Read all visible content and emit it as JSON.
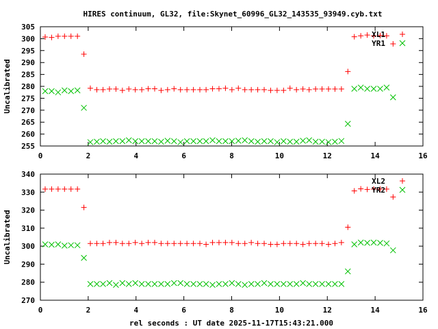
{
  "chart_data": [
    {
      "type": "scatter",
      "title": "HIRES continuum, GL32, file:Skynet_60996_GL32_143535_93949.cyb.txt",
      "xlabel": "",
      "ylabel": "Uncalibrated",
      "xlim": [
        0,
        16
      ],
      "ylim": [
        255,
        305
      ],
      "xticks": [
        0,
        2,
        4,
        6,
        8,
        10,
        12,
        14,
        16
      ],
      "yticks": [
        255,
        260,
        265,
        270,
        275,
        280,
        285,
        290,
        295,
        300,
        305
      ],
      "grid": false,
      "legend_position": "top-right",
      "x": [
        0.2,
        0.47,
        0.74,
        1.01,
        1.28,
        1.55,
        1.82,
        2.09,
        2.36,
        2.62,
        2.89,
        3.16,
        3.43,
        3.7,
        3.97,
        4.24,
        4.51,
        4.78,
        5.05,
        5.32,
        5.59,
        5.86,
        6.13,
        6.4,
        6.67,
        6.93,
        7.2,
        7.47,
        7.74,
        8.01,
        8.28,
        8.55,
        8.82,
        9.09,
        9.36,
        9.63,
        9.9,
        10.17,
        10.44,
        10.71,
        10.98,
        11.24,
        11.51,
        11.78,
        12.05,
        12.32,
        12.59,
        12.86,
        13.13,
        13.4,
        13.67,
        13.94,
        14.21,
        14.48,
        14.75
      ],
      "series": [
        {
          "name": "XL1",
          "marker": "plus",
          "color": "#ff0000",
          "values": [
            300.7,
            300.5,
            301,
            301,
            301,
            301,
            293.5,
            279.2,
            278.6,
            278.6,
            278.9,
            278.9,
            278.3,
            278.9,
            278.6,
            278.6,
            279,
            279,
            278.3,
            278.6,
            279,
            278.6,
            278.6,
            278.6,
            278.6,
            278.6,
            279,
            279,
            279.2,
            278.6,
            279.2,
            278.6,
            278.6,
            278.6,
            278.6,
            278.3,
            278.3,
            278.3,
            279.2,
            278.6,
            278.9,
            278.6,
            278.9,
            278.9,
            278.9,
            278.9,
            278.9,
            286.2,
            300.8,
            301.2,
            301.5,
            301.2,
            301.3,
            301.2,
            297.8
          ]
        },
        {
          "name": "YR1",
          "marker": "cross",
          "color": "#00c000",
          "values": [
            278,
            278,
            277.5,
            278.3,
            278,
            278.3,
            271,
            256.6,
            256.8,
            257,
            256.8,
            257,
            257,
            257.4,
            257,
            257,
            257,
            257,
            256.8,
            257.2,
            257,
            256.6,
            257,
            257,
            257,
            257,
            257.4,
            257,
            257,
            257,
            257.2,
            257.4,
            257,
            256.8,
            257,
            257,
            256.6,
            257,
            256.8,
            256.8,
            257.2,
            257.4,
            256.8,
            256.8,
            256.6,
            256.8,
            257.1,
            264.3,
            279,
            279.5,
            279,
            279,
            279,
            279.5,
            275.4
          ]
        }
      ]
    },
    {
      "type": "scatter",
      "title": "",
      "xlabel": "rel seconds : UT date 2025-11-17T15:43:21.000",
      "ylabel": "Uncalibrated",
      "xlim": [
        0,
        16
      ],
      "ylim": [
        270,
        340
      ],
      "xticks": [
        0,
        2,
        4,
        6,
        8,
        10,
        12,
        14,
        16
      ],
      "yticks": [
        270,
        280,
        290,
        300,
        310,
        320,
        330,
        340
      ],
      "grid": false,
      "legend_position": "top-right",
      "x": [
        0.2,
        0.47,
        0.74,
        1.01,
        1.28,
        1.55,
        1.82,
        2.09,
        2.36,
        2.62,
        2.89,
        3.16,
        3.43,
        3.7,
        3.97,
        4.24,
        4.51,
        4.78,
        5.05,
        5.32,
        5.59,
        5.86,
        6.13,
        6.4,
        6.67,
        6.93,
        7.2,
        7.47,
        7.74,
        8.01,
        8.28,
        8.55,
        8.82,
        9.09,
        9.36,
        9.63,
        9.9,
        10.17,
        10.44,
        10.71,
        10.98,
        11.24,
        11.51,
        11.78,
        12.05,
        12.32,
        12.59,
        12.86,
        13.13,
        13.4,
        13.67,
        13.94,
        14.21,
        14.48,
        14.75
      ],
      "series": [
        {
          "name": "XL2",
          "marker": "plus",
          "color": "#ff0000",
          "values": [
            331.7,
            331.7,
            331.7,
            331.7,
            331.7,
            331.7,
            321.5,
            301.5,
            301.5,
            301.5,
            302,
            302,
            301.5,
            301.5,
            302,
            301.5,
            302,
            302,
            301.5,
            301.5,
            301.5,
            301.5,
            301.5,
            301.5,
            301.5,
            301,
            302,
            302,
            302,
            302,
            301.5,
            301.5,
            302,
            301.5,
            301.5,
            301,
            301,
            301.5,
            301.5,
            301.5,
            301,
            301.5,
            301.5,
            301.5,
            301,
            301.5,
            302,
            310.5,
            330.7,
            331.8,
            331.5,
            331.7,
            331.7,
            331.7,
            327.3
          ]
        },
        {
          "name": "YR2",
          "marker": "cross",
          "color": "#00c000",
          "values": [
            301,
            300.8,
            301,
            300.3,
            300.5,
            300.5,
            293.5,
            279,
            279,
            279,
            279.5,
            278.5,
            279.5,
            279,
            279.5,
            279,
            279,
            279,
            279,
            279,
            279.5,
            279.5,
            279,
            279,
            279,
            279,
            278.5,
            279,
            279,
            279.5,
            279,
            278.5,
            279,
            279,
            279.5,
            279,
            279,
            279,
            279,
            279,
            279.5,
            279,
            279,
            279,
            279,
            279,
            279,
            286,
            301,
            302,
            301.8,
            302,
            301.8,
            301.5,
            297.7
          ]
        }
      ]
    }
  ]
}
